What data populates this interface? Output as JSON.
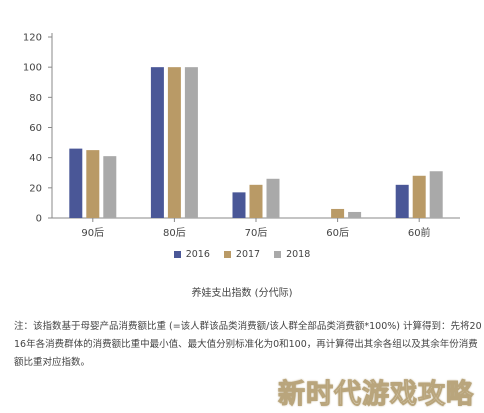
{
  "chart_data": {
    "type": "bar",
    "categories": [
      "90后",
      "80后",
      "70后",
      "60后",
      "60前"
    ],
    "series": [
      {
        "name": "2016",
        "color": "#4a5797",
        "values": [
          46,
          100,
          17,
          0,
          22
        ]
      },
      {
        "name": "2017",
        "color": "#b99a66",
        "values": [
          45,
          100,
          22,
          6,
          28
        ]
      },
      {
        "name": "2018",
        "color": "#a9a9a9",
        "values": [
          41,
          100,
          26,
          4,
          31
        ]
      }
    ],
    "ylim": [
      0,
      120
    ],
    "yticks": [
      0,
      20,
      40,
      60,
      80,
      100,
      120
    ],
    "grid": false,
    "legend_position": "bottom"
  },
  "subtitle": "养娃支出指数 (分代际)",
  "note": "注：该指数基于母婴产品消费额比重 (=该人群该品类消费额/该人群全部品类消费额*100%) 计算得到：先将2016年各消费群体的消费额比重中最小值、最大值分别标准化为0和100，再计算得出其余各组以及其余年份消费额比重对应指数。",
  "watermark": "新时代游戏攻略"
}
